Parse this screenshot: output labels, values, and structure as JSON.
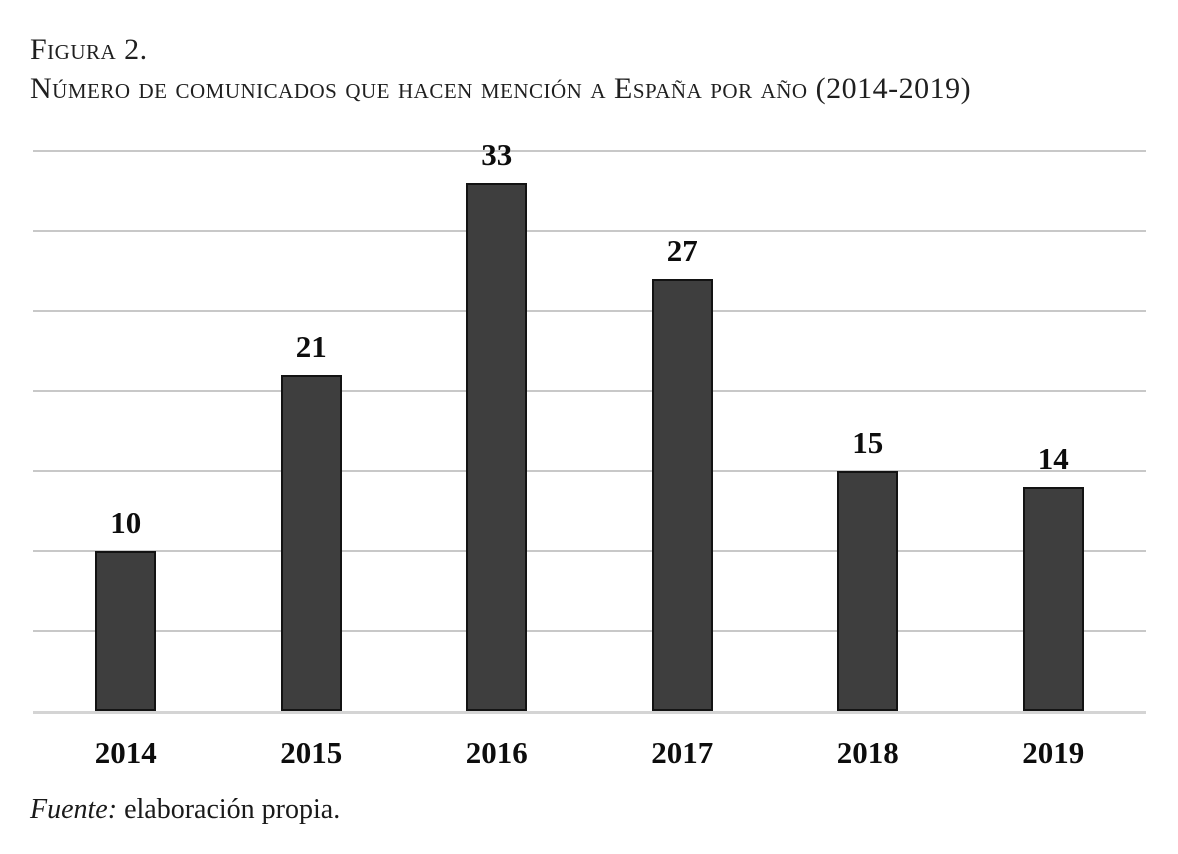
{
  "figure": {
    "label": "Figura 2.",
    "title": "Número de comunicados que hacen mención a España por año (2014-2019)",
    "source_prefix": "Fuente:",
    "source_text": " elaboración propia."
  },
  "chart_data": {
    "type": "bar",
    "categories": [
      "2014",
      "2015",
      "2016",
      "2017",
      "2018",
      "2019"
    ],
    "values": [
      10,
      21,
      33,
      27,
      15,
      14
    ],
    "title": "Número de comunicados que hacen mención a España por año (2014-2019)",
    "xlabel": "",
    "ylabel": "",
    "ylim": [
      0,
      35
    ],
    "gridline_step": 5,
    "grid": true,
    "legend": "none",
    "value_labels_shown": true,
    "colors": {
      "bar_fill": "#3e3e3e",
      "bar_border": "#131313",
      "gridline": "#c8c8c8",
      "axis_line": "#d4d4d4",
      "label_text": "#0d0d0d"
    }
  }
}
